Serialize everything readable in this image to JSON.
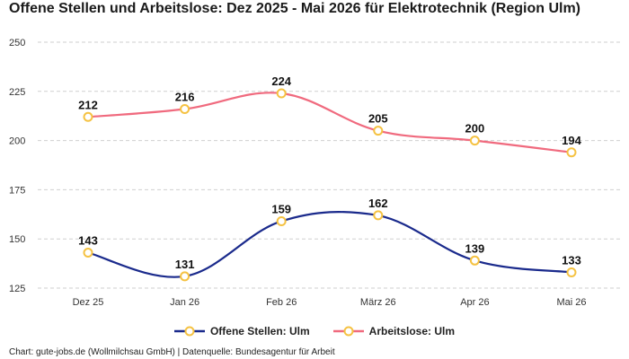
{
  "title": "Offene Stellen und Arbeitslose: Dez 2025 - Mai 2026 für Elektrotechnik (Region Ulm)",
  "footer": "Chart: gute-jobs.de (Wollmilchsau GmbH) | Datenquelle: Bundesagentur für Arbeit",
  "chart_data": {
    "type": "line",
    "title": "Offene Stellen und Arbeitslose: Dez 2025 - Mai 2026 für Elektrotechnik (Region Ulm)",
    "categories": [
      "Dez 25",
      "Jan 26",
      "Feb 26",
      "März 26",
      "Apr 26",
      "Mai 26"
    ],
    "series": [
      {
        "name": "Offene Stellen: Ulm",
        "values": [
          143,
          131,
          159,
          162,
          139,
          133
        ],
        "color": "#1a2a8c"
      },
      {
        "name": "Arbeitslose: Ulm",
        "values": [
          212,
          216,
          224,
          205,
          200,
          194
        ],
        "color": "#f06a7e"
      }
    ],
    "yticks": [
      125,
      150,
      175,
      200,
      225,
      250
    ],
    "ylim": [
      125,
      250
    ],
    "grid": true,
    "legend": "bottom",
    "marker_color": "#f5c242",
    "xlabel": "",
    "ylabel": ""
  }
}
